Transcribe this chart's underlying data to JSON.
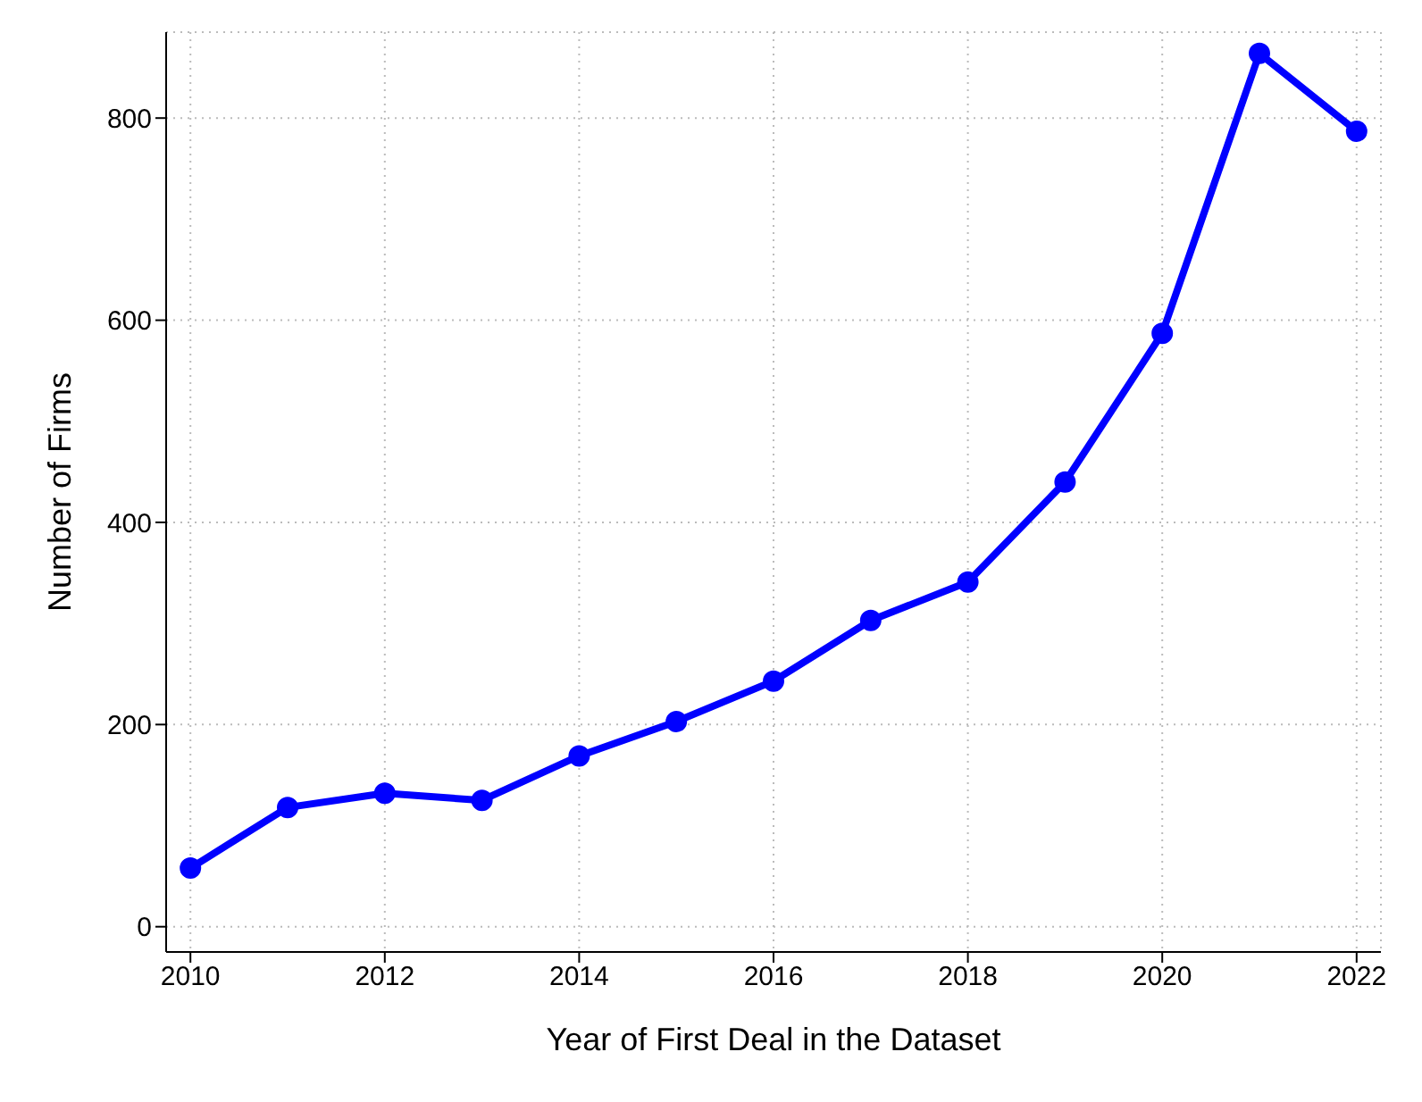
{
  "chart_data": {
    "type": "line",
    "xlabel": "Year of First Deal in the Dataset",
    "ylabel": "Number of Firms",
    "x": [
      2010,
      2011,
      2012,
      2013,
      2014,
      2015,
      2016,
      2017,
      2018,
      2019,
      2020,
      2021,
      2022
    ],
    "series": [
      {
        "color": "#0000ff",
        "values": [
          58,
          118,
          132,
          125,
          169,
          203,
          243,
          303,
          341,
          440,
          587,
          864,
          787
        ]
      }
    ],
    "xlim": [
      2009.75,
      2022.25
    ],
    "xticks": [
      2010,
      2012,
      2014,
      2016,
      2018,
      2020,
      2022
    ],
    "ylim": [
      -25,
      885
    ],
    "yticks": [
      0,
      200,
      400,
      600,
      800
    ],
    "grid": true,
    "marker": "circle",
    "line_style": "solid",
    "legend": false
  }
}
